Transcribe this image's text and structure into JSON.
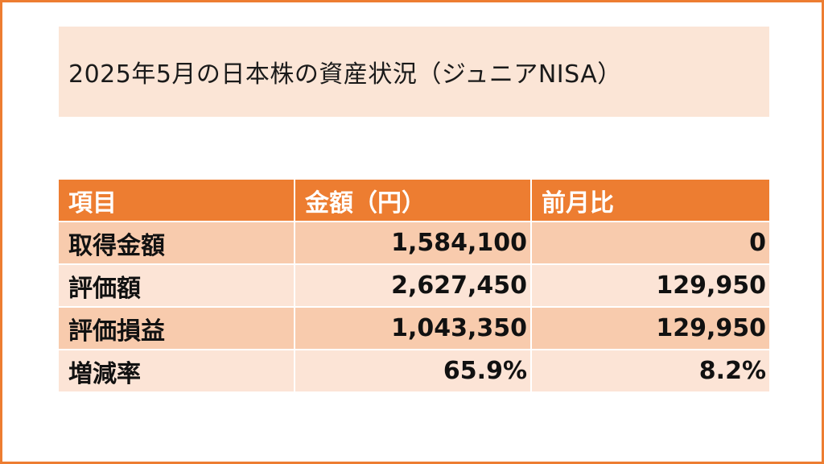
{
  "title": "2025年5月の日本株の資産状況（ジュニアNISA）",
  "colors": {
    "accent": "#ED7D31",
    "title_bg": "#FBE5D6",
    "row_dark": "#F8CBAD",
    "row_light": "#FCE4D6"
  },
  "table": {
    "headers": [
      "項目",
      "金額（円）",
      "前月比"
    ],
    "rows": [
      {
        "item": "取得金額",
        "amount": "1,584,100",
        "change": "0"
      },
      {
        "item": "評価額",
        "amount": "2,627,450",
        "change": "129,950"
      },
      {
        "item": "評価損益",
        "amount": "1,043,350",
        "change": "129,950"
      },
      {
        "item": "増減率",
        "amount": "65.9%",
        "change": "8.2%"
      }
    ]
  }
}
